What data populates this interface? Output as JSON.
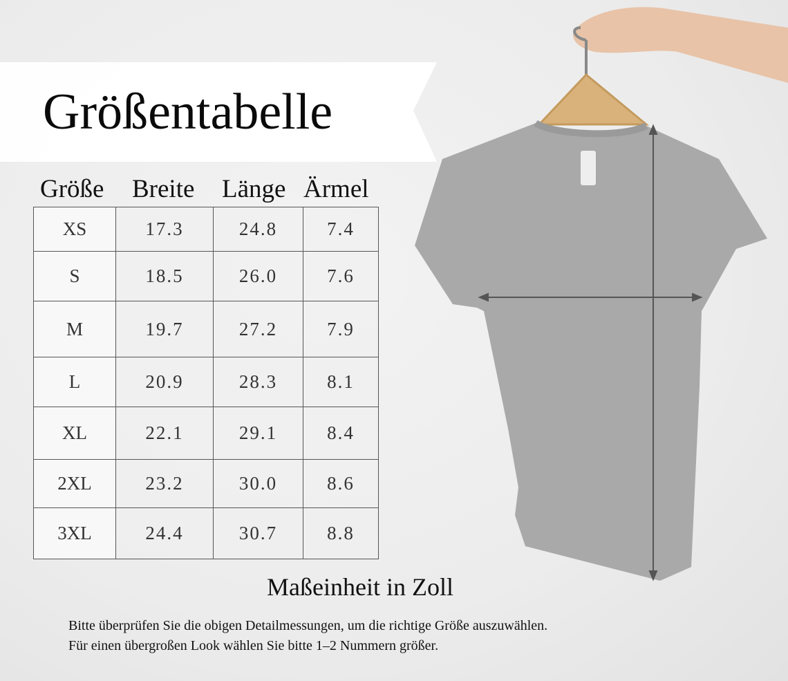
{
  "title": "Größentabelle",
  "table": {
    "headers": [
      "Größe",
      "Breite",
      "Länge",
      "Ärmel"
    ],
    "rows": [
      [
        "XS",
        "17.3",
        "24.8",
        "7.4"
      ],
      [
        "S",
        "18.5",
        "26.0",
        "7.6"
      ],
      [
        "M",
        "19.7",
        "27.2",
        "7.9"
      ],
      [
        "L",
        "20.9",
        "28.3",
        "8.1"
      ],
      [
        "XL",
        "22.1",
        "29.1",
        "8.4"
      ],
      [
        "2XL",
        "23.2",
        "30.0",
        "8.6"
      ],
      [
        "3XL",
        "24.4",
        "30.7",
        "8.8"
      ]
    ]
  },
  "unit_note": "Maßeinheit in Zoll",
  "notes": [
    "Bitte überprüfen Sie die obigen Detailmessungen, um die richtige Größe auszuwählen.",
    "Für einen übergroßen Look wählen Sie bitte 1–2 Nummern größer."
  ],
  "colors": {
    "shirt": "#a9a9a9",
    "arrow": "#555555",
    "banner": "#ffffff"
  }
}
